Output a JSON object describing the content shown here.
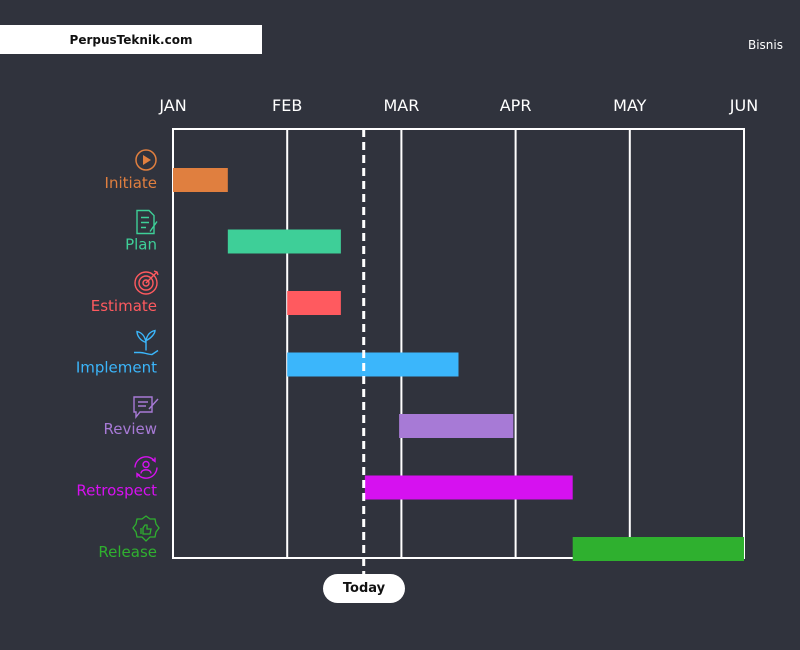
{
  "header": {
    "brand": "PerpusTeknik.com",
    "category": "Bisnis"
  },
  "chart_data": {
    "type": "gantt",
    "months": [
      "JAN",
      "FEB",
      "MAR",
      "APR",
      "MAY",
      "JUN"
    ],
    "x_range_months": [
      0,
      5
    ],
    "grid": true,
    "today": {
      "label": "Today",
      "month_value": 1.67
    },
    "tasks": [
      {
        "name": "Initiate",
        "start": 0.0,
        "end": 0.48,
        "color": "#e07f3f",
        "icon": "play-circle-icon"
      },
      {
        "name": "Plan",
        "start": 0.48,
        "end": 1.47,
        "color": "#3ecf98",
        "icon": "document-pen-icon"
      },
      {
        "name": "Estimate",
        "start": 1.0,
        "end": 1.47,
        "color": "#ff5a5f",
        "icon": "target-icon"
      },
      {
        "name": "Implement",
        "start": 1.0,
        "end": 2.5,
        "color": "#3bb6fb",
        "icon": "plant-hand-icon"
      },
      {
        "name": "Review",
        "start": 1.98,
        "end": 2.98,
        "color": "#a77ad6",
        "icon": "chat-edit-icon"
      },
      {
        "name": "Retrospect",
        "start": 1.68,
        "end": 3.5,
        "color": "#d611f0",
        "icon": "person-cycle-icon"
      },
      {
        "name": "Release",
        "start": 3.5,
        "end": 5.0,
        "color": "#2fb02f",
        "icon": "thumbs-up-badge-icon"
      }
    ]
  }
}
